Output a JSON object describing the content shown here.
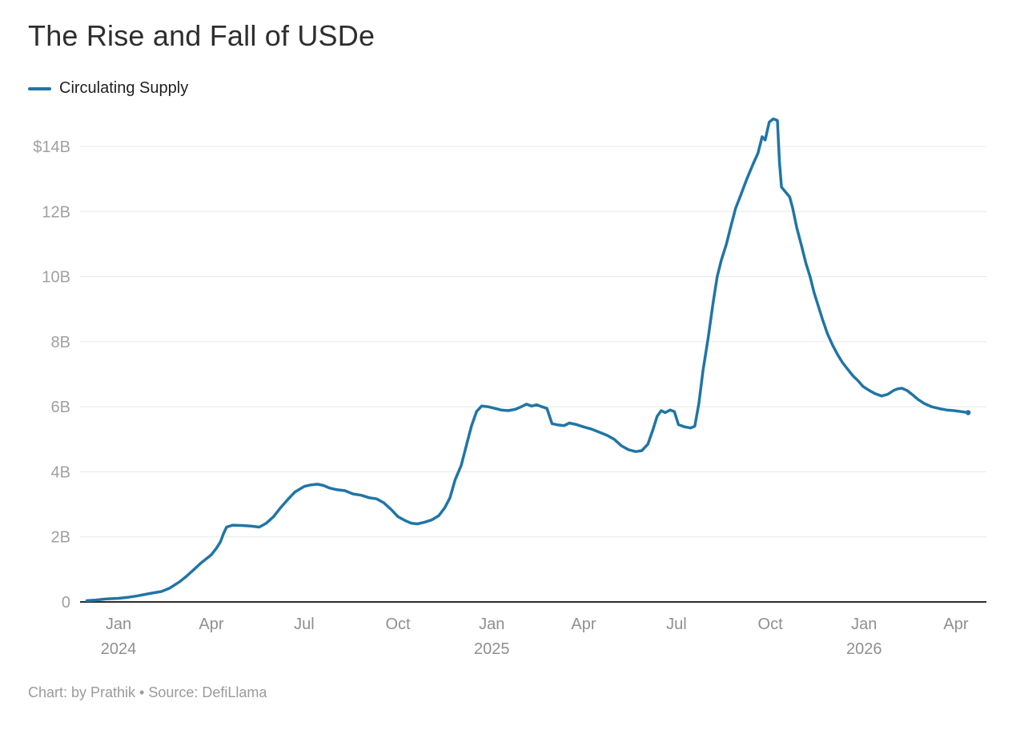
{
  "header": {
    "title": "The Rise and Fall of USDe"
  },
  "legend": {
    "label": "Circulating Supply",
    "swatch_color": "#2075a5"
  },
  "footer": {
    "text": "Chart: by Prathik • Source: DefiLlama"
  },
  "chart_data": {
    "type": "line",
    "title": "The Rise and Fall of USDe",
    "legend_position": "top-left",
    "grid": "horizontal-only",
    "unit": "USD billions",
    "colors": {
      "line": "#2075a5",
      "grid": "#e8e8e8",
      "zero_axis": "#2b2b2b",
      "y_tick_text": "#a0a0a0",
      "x_tick_text": "#8f8f8f"
    },
    "y_axis": {
      "range_billions": [
        0,
        15.2
      ],
      "ticks": [
        {
          "value": 0,
          "label": "0"
        },
        {
          "value": 2,
          "label": "2B"
        },
        {
          "value": 4,
          "label": "4B"
        },
        {
          "value": 6,
          "label": "6B"
        },
        {
          "value": 8,
          "label": "8B"
        },
        {
          "value": 10,
          "label": "10B"
        },
        {
          "value": 12,
          "label": "12B"
        },
        {
          "value": 14,
          "label": "$14B"
        }
      ]
    },
    "x_axis": {
      "range": [
        "2023-11-24",
        "2026-04-29"
      ],
      "ticks": [
        {
          "date": "2024-01-01",
          "label": "Jan",
          "year": "2024"
        },
        {
          "date": "2024-04-01",
          "label": "Apr"
        },
        {
          "date": "2024-07-01",
          "label": "Jul"
        },
        {
          "date": "2024-10-01",
          "label": "Oct"
        },
        {
          "date": "2025-01-01",
          "label": "Jan",
          "year": "2025"
        },
        {
          "date": "2025-04-01",
          "label": "Apr"
        },
        {
          "date": "2025-07-01",
          "label": "Jul"
        },
        {
          "date": "2025-10-01",
          "label": "Oct"
        },
        {
          "date": "2026-01-01",
          "label": "Jan",
          "year": "2026"
        },
        {
          "date": "2026-04-01",
          "label": "Apr"
        }
      ]
    },
    "series": [
      {
        "name": "Circulating Supply",
        "color": "#2075a5",
        "unit": "USD billions",
        "points": [
          [
            "2023-12-01",
            0.04
          ],
          [
            "2023-12-10",
            0.06
          ],
          [
            "2023-12-20",
            0.09
          ],
          [
            "2024-01-01",
            0.11
          ],
          [
            "2024-01-10",
            0.14
          ],
          [
            "2024-01-20",
            0.19
          ],
          [
            "2024-02-01",
            0.26
          ],
          [
            "2024-02-12",
            0.32
          ],
          [
            "2024-02-20",
            0.42
          ],
          [
            "2024-03-01",
            0.62
          ],
          [
            "2024-03-08",
            0.8
          ],
          [
            "2024-03-15",
            1.0
          ],
          [
            "2024-03-22",
            1.2
          ],
          [
            "2024-04-01",
            1.45
          ],
          [
            "2024-04-06",
            1.65
          ],
          [
            "2024-04-10",
            1.85
          ],
          [
            "2024-04-13",
            2.1
          ],
          [
            "2024-04-16",
            2.3
          ],
          [
            "2024-04-22",
            2.36
          ],
          [
            "2024-05-01",
            2.35
          ],
          [
            "2024-05-10",
            2.33
          ],
          [
            "2024-05-18",
            2.3
          ],
          [
            "2024-05-25",
            2.42
          ],
          [
            "2024-06-01",
            2.62
          ],
          [
            "2024-06-08",
            2.9
          ],
          [
            "2024-06-15",
            3.15
          ],
          [
            "2024-06-22",
            3.38
          ],
          [
            "2024-07-01",
            3.55
          ],
          [
            "2024-07-08",
            3.6
          ],
          [
            "2024-07-14",
            3.62
          ],
          [
            "2024-07-20",
            3.58
          ],
          [
            "2024-07-26",
            3.5
          ],
          [
            "2024-08-02",
            3.45
          ],
          [
            "2024-08-10",
            3.42
          ],
          [
            "2024-08-18",
            3.32
          ],
          [
            "2024-08-26",
            3.28
          ],
          [
            "2024-09-03",
            3.2
          ],
          [
            "2024-09-10",
            3.17
          ],
          [
            "2024-09-17",
            3.05
          ],
          [
            "2024-09-24",
            2.85
          ],
          [
            "2024-10-01",
            2.62
          ],
          [
            "2024-10-08",
            2.5
          ],
          [
            "2024-10-14",
            2.42
          ],
          [
            "2024-10-20",
            2.4
          ],
          [
            "2024-10-27",
            2.45
          ],
          [
            "2024-11-03",
            2.52
          ],
          [
            "2024-11-10",
            2.65
          ],
          [
            "2024-11-16",
            2.9
          ],
          [
            "2024-11-21",
            3.2
          ],
          [
            "2024-11-26",
            3.75
          ],
          [
            "2024-12-02",
            4.2
          ],
          [
            "2024-12-07",
            4.8
          ],
          [
            "2024-12-12",
            5.4
          ],
          [
            "2024-12-17",
            5.85
          ],
          [
            "2024-12-22",
            6.02
          ],
          [
            "2024-12-28",
            6.0
          ],
          [
            "2025-01-04",
            5.95
          ],
          [
            "2025-01-10",
            5.9
          ],
          [
            "2025-01-17",
            5.88
          ],
          [
            "2025-01-24",
            5.92
          ],
          [
            "2025-01-30",
            6.0
          ],
          [
            "2025-02-04",
            6.08
          ],
          [
            "2025-02-09",
            6.02
          ],
          [
            "2025-02-14",
            6.06
          ],
          [
            "2025-02-19",
            6.0
          ],
          [
            "2025-02-24",
            5.95
          ],
          [
            "2025-03-01",
            5.48
          ],
          [
            "2025-03-07",
            5.44
          ],
          [
            "2025-03-13",
            5.42
          ],
          [
            "2025-03-18",
            5.5
          ],
          [
            "2025-03-24",
            5.46
          ],
          [
            "2025-04-01",
            5.38
          ],
          [
            "2025-04-08",
            5.32
          ],
          [
            "2025-04-16",
            5.22
          ],
          [
            "2025-04-24",
            5.12
          ],
          [
            "2025-05-01",
            5.0
          ],
          [
            "2025-05-08",
            4.8
          ],
          [
            "2025-05-15",
            4.68
          ],
          [
            "2025-05-22",
            4.62
          ],
          [
            "2025-05-28",
            4.65
          ],
          [
            "2025-06-03",
            4.85
          ],
          [
            "2025-06-08",
            5.3
          ],
          [
            "2025-06-12",
            5.7
          ],
          [
            "2025-06-16",
            5.88
          ],
          [
            "2025-06-20",
            5.82
          ],
          [
            "2025-06-25",
            5.9
          ],
          [
            "2025-06-29",
            5.85
          ],
          [
            "2025-07-03",
            5.45
          ],
          [
            "2025-07-09",
            5.38
          ],
          [
            "2025-07-15",
            5.35
          ],
          [
            "2025-07-19",
            5.4
          ],
          [
            "2025-07-23",
            6.1
          ],
          [
            "2025-07-27",
            7.1
          ],
          [
            "2025-08-01",
            8.1
          ],
          [
            "2025-08-06",
            9.2
          ],
          [
            "2025-08-10",
            10.0
          ],
          [
            "2025-08-14",
            10.5
          ],
          [
            "2025-08-19",
            11.0
          ],
          [
            "2025-08-23",
            11.5
          ],
          [
            "2025-08-28",
            12.1
          ],
          [
            "2025-09-02",
            12.5
          ],
          [
            "2025-09-08",
            13.0
          ],
          [
            "2025-09-14",
            13.45
          ],
          [
            "2025-09-19",
            13.8
          ],
          [
            "2025-09-23",
            14.3
          ],
          [
            "2025-09-26",
            14.2
          ],
          [
            "2025-09-30",
            14.75
          ],
          [
            "2025-10-04",
            14.85
          ],
          [
            "2025-10-08",
            14.8
          ],
          [
            "2025-10-10",
            13.5
          ],
          [
            "2025-10-12",
            12.75
          ],
          [
            "2025-10-16",
            12.6
          ],
          [
            "2025-10-20",
            12.45
          ],
          [
            "2025-10-23",
            12.1
          ],
          [
            "2025-10-27",
            11.5
          ],
          [
            "2025-11-01",
            10.9
          ],
          [
            "2025-11-05",
            10.4
          ],
          [
            "2025-11-09",
            10.0
          ],
          [
            "2025-11-13",
            9.5
          ],
          [
            "2025-11-17",
            9.1
          ],
          [
            "2025-11-21",
            8.7
          ],
          [
            "2025-11-26",
            8.25
          ],
          [
            "2025-12-01",
            7.9
          ],
          [
            "2025-12-06",
            7.6
          ],
          [
            "2025-12-11",
            7.35
          ],
          [
            "2025-12-16",
            7.15
          ],
          [
            "2025-12-21",
            6.95
          ],
          [
            "2025-12-26",
            6.8
          ],
          [
            "2025-12-31",
            6.62
          ],
          [
            "2026-01-06",
            6.5
          ],
          [
            "2026-01-12",
            6.4
          ],
          [
            "2026-01-18",
            6.33
          ],
          [
            "2026-01-24",
            6.38
          ],
          [
            "2026-01-30",
            6.5
          ],
          [
            "2026-02-03",
            6.55
          ],
          [
            "2026-02-07",
            6.57
          ],
          [
            "2026-02-12",
            6.5
          ],
          [
            "2026-02-17",
            6.38
          ],
          [
            "2026-02-23",
            6.22
          ],
          [
            "2026-03-01",
            6.1
          ],
          [
            "2026-03-08",
            6.0
          ],
          [
            "2026-03-16",
            5.94
          ],
          [
            "2026-03-23",
            5.9
          ],
          [
            "2026-03-30",
            5.88
          ],
          [
            "2026-04-06",
            5.85
          ],
          [
            "2026-04-13",
            5.82
          ]
        ]
      }
    ]
  }
}
